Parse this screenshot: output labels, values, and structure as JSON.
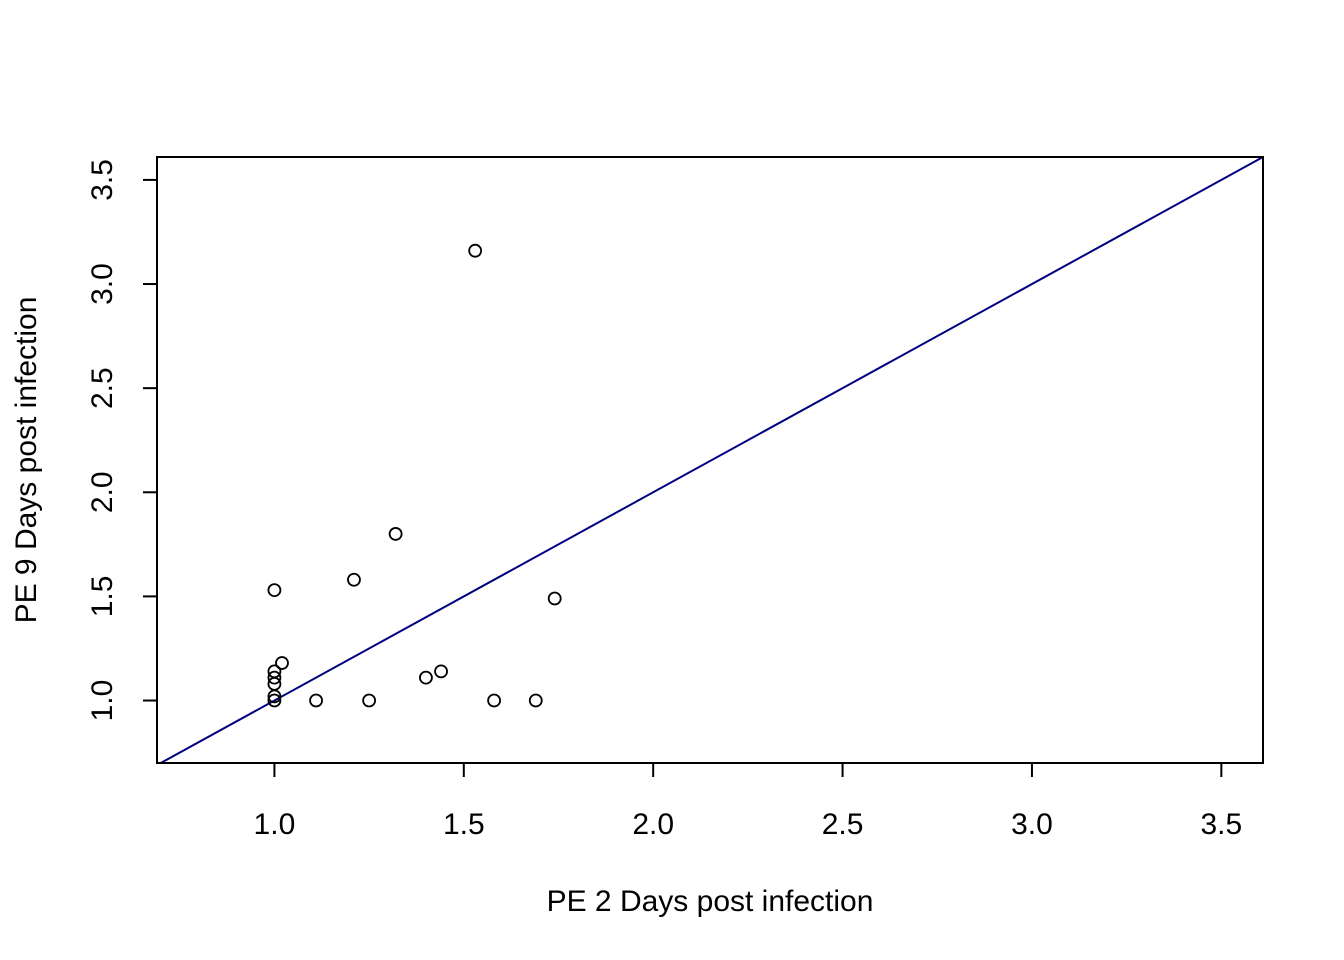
{
  "chart_data": {
    "type": "scatter",
    "title": "",
    "xlabel": "PE 2 Days post infection",
    "ylabel": "PE 9 Days post infection",
    "xlim": [
      0.69,
      3.61
    ],
    "ylim": [
      0.7,
      3.61
    ],
    "x_ticks": [
      1.0,
      1.5,
      2.0,
      2.5,
      3.0,
      3.5
    ],
    "x_tick_labels": [
      "1.0",
      "1.5",
      "2.0",
      "2.5",
      "3.0",
      "3.5"
    ],
    "y_ticks": [
      1.0,
      1.5,
      2.0,
      2.5,
      3.0,
      3.5
    ],
    "y_tick_labels": [
      "1.0",
      "1.5",
      "2.0",
      "2.5",
      "3.0",
      "3.5"
    ],
    "grid": false,
    "legend": "none",
    "points": [
      {
        "x": 1.0,
        "y": 1.0
      },
      {
        "x": 1.0,
        "y": 1.02
      },
      {
        "x": 1.0,
        "y": 1.08
      },
      {
        "x": 1.0,
        "y": 1.11
      },
      {
        "x": 1.0,
        "y": 1.14
      },
      {
        "x": 1.0,
        "y": 1.53
      },
      {
        "x": 1.02,
        "y": 1.18
      },
      {
        "x": 1.11,
        "y": 1.0
      },
      {
        "x": 1.21,
        "y": 1.58
      },
      {
        "x": 1.25,
        "y": 1.0
      },
      {
        "x": 1.32,
        "y": 1.8
      },
      {
        "x": 1.4,
        "y": 1.11
      },
      {
        "x": 1.44,
        "y": 1.14
      },
      {
        "x": 1.53,
        "y": 3.16
      },
      {
        "x": 1.58,
        "y": 1.0
      },
      {
        "x": 1.69,
        "y": 1.0
      },
      {
        "x": 1.74,
        "y": 1.49
      }
    ],
    "reference_line": {
      "type": "y=x",
      "intercept": 0,
      "slope": 1,
      "color": "#000080"
    },
    "point_color": "#000000",
    "marker": "open-circle"
  }
}
